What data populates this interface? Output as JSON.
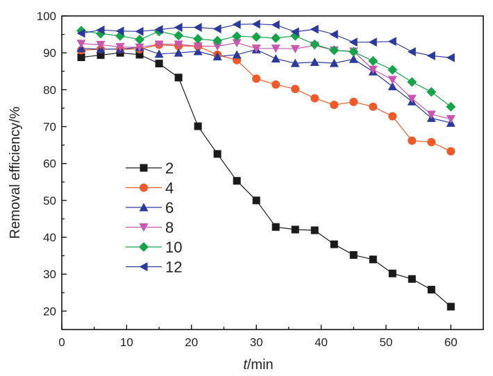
{
  "chart_data": {
    "type": "line",
    "title": "",
    "xlabel_italic": "t",
    "xlabel_rest": "/min",
    "ylabel": "Removal efficiency/%",
    "xlim": [
      0,
      65
    ],
    "ylim": [
      15,
      100
    ],
    "xticks": [
      0,
      10,
      20,
      30,
      40,
      50,
      60
    ],
    "yticks": [
      20,
      30,
      40,
      50,
      60,
      70,
      80,
      90,
      100
    ],
    "xtick_labels": [
      "0",
      "10",
      "20",
      "30",
      "40",
      "50",
      "60"
    ],
    "ytick_labels": [
      "20",
      "30",
      "40",
      "50",
      "60",
      "70",
      "80",
      "90",
      "100"
    ],
    "grid": false,
    "legend_position": "center-left",
    "x": [
      3,
      6,
      9,
      12,
      15,
      18,
      21,
      24,
      27,
      30,
      33,
      36,
      39,
      42,
      45,
      48,
      51,
      54,
      57,
      60
    ],
    "series": [
      {
        "name": "2",
        "color": "#1a1a1a",
        "marker": "square",
        "values": [
          88.8,
          89.4,
          90.0,
          89.5,
          87.1,
          83.3,
          70.1,
          62.6,
          55.3,
          50.0,
          42.8,
          42.1,
          41.9,
          38.1,
          35.2,
          34.0,
          30.2,
          28.7,
          25.8,
          21.2
        ]
      },
      {
        "name": "4",
        "color": "#f05a28",
        "marker": "circle",
        "values": [
          90.7,
          91.0,
          91.0,
          91.0,
          92.2,
          91.9,
          91.8,
          89.5,
          88.0,
          83.0,
          81.4,
          80.2,
          77.7,
          75.9,
          76.7,
          75.4,
          72.8,
          66.2,
          65.8,
          63.3
        ]
      },
      {
        "name": "6",
        "color": "#2b3a9a",
        "marker": "triangle-up",
        "values": [
          91.2,
          91.0,
          91.0,
          91.5,
          89.7,
          90.0,
          90.4,
          89.0,
          89.5,
          90.9,
          88.4,
          87.2,
          87.5,
          87.2,
          88.3,
          84.9,
          80.9,
          76.8,
          72.3,
          71.0
        ]
      },
      {
        "name": "8",
        "color": "#c857b0",
        "marker": "triangle-down",
        "values": [
          92.5,
          92.2,
          91.6,
          91.5,
          92.3,
          92.3,
          91.8,
          91.8,
          92.7,
          91.2,
          91.2,
          91.1,
          92.0,
          90.7,
          90.4,
          85.5,
          82.7,
          77.6,
          73.3,
          72.1
        ]
      },
      {
        "name": "10",
        "color": "#17a34a",
        "marker": "diamond",
        "values": [
          96.0,
          95.2,
          94.6,
          93.6,
          95.8,
          94.7,
          93.8,
          93.3,
          94.5,
          94.3,
          94.0,
          94.6,
          92.3,
          90.7,
          90.3,
          87.8,
          85.4,
          82.1,
          79.4,
          75.4
        ]
      },
      {
        "name": "12",
        "color": "#2b3a9a",
        "marker": "triangle-left",
        "values": [
          95.3,
          96.2,
          95.9,
          95.8,
          96.3,
          96.9,
          96.9,
          96.5,
          97.7,
          97.8,
          97.6,
          95.7,
          96.4,
          95.0,
          92.9,
          92.9,
          93.1,
          90.3,
          89.2,
          88.7
        ]
      }
    ]
  }
}
